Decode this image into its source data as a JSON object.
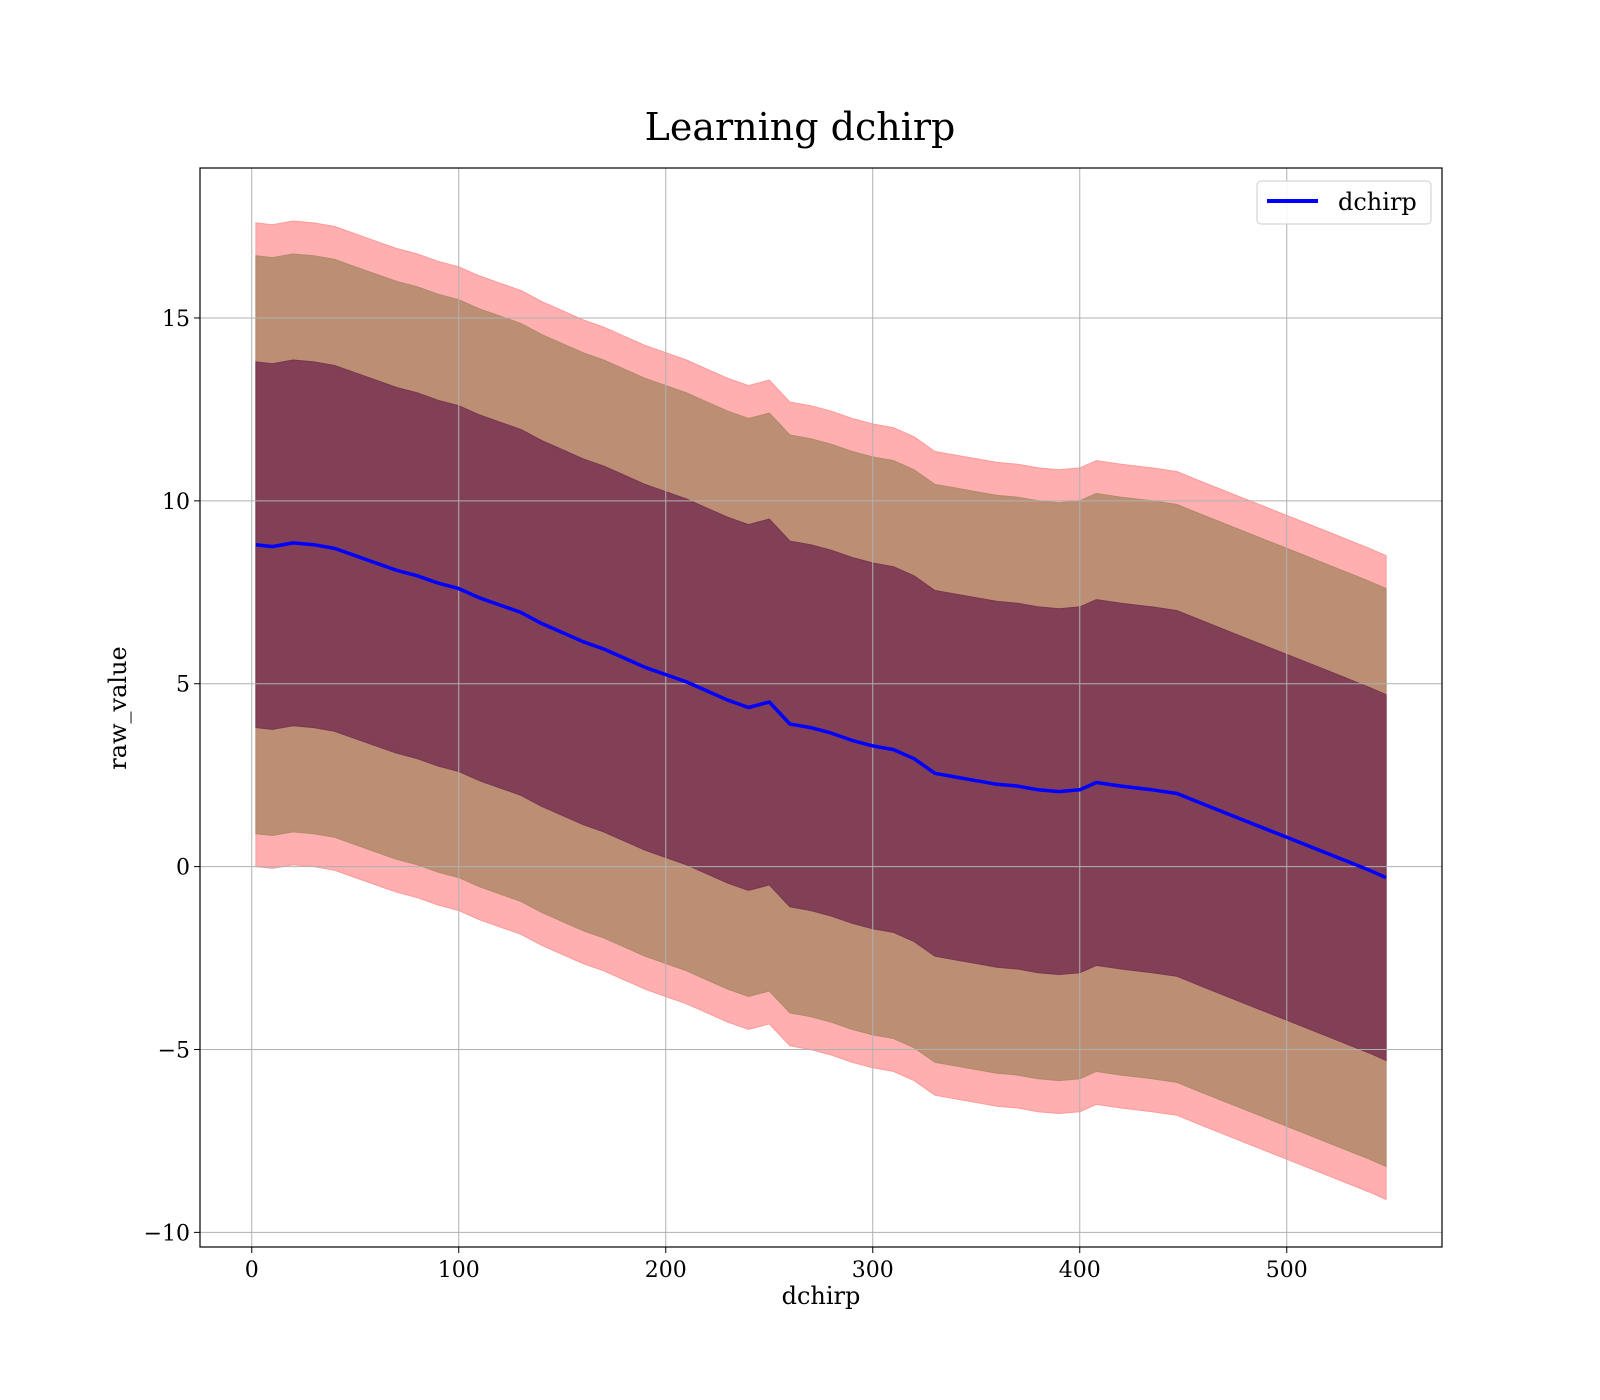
{
  "chart_data": {
    "type": "area",
    "title": "Learning dchirp",
    "xlabel": "dchirp",
    "ylabel": "raw_value",
    "xlim": [
      -25,
      575
    ],
    "ylim": [
      -10.4,
      19.1
    ],
    "xticks": [
      0,
      100,
      200,
      300,
      400,
      500
    ],
    "yticks": [
      -10,
      -5,
      0,
      5,
      10,
      15
    ],
    "xtick_labels": [
      "0",
      "100",
      "200",
      "300",
      "400",
      "500"
    ],
    "ytick_labels": [
      "−10",
      "−5",
      "0",
      "5",
      "10",
      "15"
    ],
    "grid": true,
    "legend_position": "top-right",
    "series": [
      {
        "name": "dchirp",
        "kind": "line",
        "color": "#0000ff",
        "x": [
          2,
          10,
          20,
          30,
          40,
          50,
          60,
          70,
          80,
          90,
          100,
          110,
          120,
          130,
          140,
          150,
          160,
          170,
          180,
          190,
          200,
          210,
          220,
          230,
          240,
          250,
          260,
          270,
          280,
          290,
          300,
          310,
          320,
          330,
          340,
          350,
          360,
          370,
          380,
          390,
          400,
          408,
          420,
          435,
          447,
          460,
          480,
          500,
          520,
          540,
          548
        ],
        "y": [
          8.8,
          8.75,
          8.85,
          8.8,
          8.7,
          8.5,
          8.3,
          8.1,
          7.95,
          7.75,
          7.6,
          7.35,
          7.15,
          6.95,
          6.65,
          6.4,
          6.15,
          5.95,
          5.7,
          5.45,
          5.25,
          5.05,
          4.8,
          4.55,
          4.35,
          4.5,
          3.9,
          3.8,
          3.65,
          3.45,
          3.3,
          3.2,
          2.95,
          2.55,
          2.45,
          2.35,
          2.25,
          2.2,
          2.1,
          2.05,
          2.1,
          2.3,
          2.2,
          2.1,
          2.0,
          1.7,
          1.25,
          0.8,
          0.35,
          -0.1,
          -0.3
        ]
      }
    ],
    "bands": [
      {
        "sigma": 3,
        "color": "#ff9999",
        "x": [
          2,
          10,
          20,
          30,
          40,
          50,
          60,
          70,
          80,
          90,
          100,
          110,
          120,
          130,
          140,
          150,
          160,
          170,
          180,
          190,
          200,
          210,
          220,
          230,
          240,
          250,
          260,
          270,
          280,
          290,
          300,
          310,
          320,
          330,
          340,
          350,
          360,
          370,
          380,
          390,
          400,
          408,
          420,
          435,
          447,
          460,
          480,
          500,
          520,
          540,
          548
        ],
        "upper": [
          17.6,
          17.55,
          17.65,
          17.6,
          17.5,
          17.3,
          17.1,
          16.9,
          16.75,
          16.55,
          16.4,
          16.15,
          15.95,
          15.75,
          15.45,
          15.2,
          14.95,
          14.75,
          14.5,
          14.25,
          14.05,
          13.85,
          13.6,
          13.35,
          13.15,
          13.3,
          12.7,
          12.6,
          12.45,
          12.25,
          12.1,
          12.0,
          11.75,
          11.35,
          11.25,
          11.15,
          11.05,
          11.0,
          10.9,
          10.85,
          10.9,
          11.1,
          11.0,
          10.9,
          10.8,
          10.5,
          10.05,
          9.6,
          9.15,
          8.7,
          8.5
        ],
        "lower": [
          0.0,
          -0.05,
          0.05,
          0.0,
          -0.1,
          -0.3,
          -0.5,
          -0.7,
          -0.85,
          -1.05,
          -1.2,
          -1.45,
          -1.65,
          -1.85,
          -2.15,
          -2.4,
          -2.65,
          -2.85,
          -3.1,
          -3.35,
          -3.55,
          -3.75,
          -4.0,
          -4.25,
          -4.45,
          -4.3,
          -4.9,
          -5.0,
          -5.15,
          -5.35,
          -5.5,
          -5.6,
          -5.85,
          -6.25,
          -6.35,
          -6.45,
          -6.55,
          -6.6,
          -6.7,
          -6.75,
          -6.7,
          -6.5,
          -6.6,
          -6.7,
          -6.8,
          -7.1,
          -7.55,
          -8.0,
          -8.45,
          -8.9,
          -9.1
        ]
      },
      {
        "sigma": 2,
        "color": "#b08a6a",
        "x": [
          2,
          10,
          20,
          30,
          40,
          50,
          60,
          70,
          80,
          90,
          100,
          110,
          120,
          130,
          140,
          150,
          160,
          170,
          180,
          190,
          200,
          210,
          220,
          230,
          240,
          250,
          260,
          270,
          280,
          290,
          300,
          310,
          320,
          330,
          340,
          350,
          360,
          370,
          380,
          390,
          400,
          408,
          420,
          435,
          447,
          460,
          480,
          500,
          520,
          540,
          548
        ],
        "upper": [
          16.7,
          16.65,
          16.75,
          16.7,
          16.6,
          16.4,
          16.2,
          16.0,
          15.85,
          15.65,
          15.5,
          15.25,
          15.05,
          14.85,
          14.55,
          14.3,
          14.05,
          13.85,
          13.6,
          13.35,
          13.15,
          12.95,
          12.7,
          12.45,
          12.25,
          12.4,
          11.8,
          11.7,
          11.55,
          11.35,
          11.2,
          11.1,
          10.85,
          10.45,
          10.35,
          10.25,
          10.15,
          10.1,
          10.0,
          9.95,
          10.0,
          10.2,
          10.1,
          10.0,
          9.9,
          9.6,
          9.15,
          8.7,
          8.25,
          7.8,
          7.6
        ],
        "lower": [
          0.9,
          0.85,
          0.95,
          0.9,
          0.8,
          0.6,
          0.4,
          0.2,
          0.05,
          -0.15,
          -0.3,
          -0.55,
          -0.75,
          -0.95,
          -1.25,
          -1.5,
          -1.75,
          -1.95,
          -2.2,
          -2.45,
          -2.65,
          -2.85,
          -3.1,
          -3.35,
          -3.55,
          -3.4,
          -4.0,
          -4.1,
          -4.25,
          -4.45,
          -4.6,
          -4.7,
          -4.95,
          -5.35,
          -5.45,
          -5.55,
          -5.65,
          -5.7,
          -5.8,
          -5.85,
          -5.8,
          -5.6,
          -5.7,
          -5.8,
          -5.9,
          -6.2,
          -6.65,
          -7.1,
          -7.55,
          -8.0,
          -8.2
        ]
      },
      {
        "sigma": 1,
        "color": "#7a3552",
        "x": [
          2,
          10,
          20,
          30,
          40,
          50,
          60,
          70,
          80,
          90,
          100,
          110,
          120,
          130,
          140,
          150,
          160,
          170,
          180,
          190,
          200,
          210,
          220,
          230,
          240,
          250,
          260,
          270,
          280,
          290,
          300,
          310,
          320,
          330,
          340,
          350,
          360,
          370,
          380,
          390,
          400,
          408,
          420,
          435,
          447,
          460,
          480,
          500,
          520,
          540,
          548
        ],
        "upper": [
          13.8,
          13.75,
          13.85,
          13.8,
          13.7,
          13.5,
          13.3,
          13.1,
          12.95,
          12.75,
          12.6,
          12.35,
          12.15,
          11.95,
          11.65,
          11.4,
          11.15,
          10.95,
          10.7,
          10.45,
          10.25,
          10.05,
          9.8,
          9.55,
          9.35,
          9.5,
          8.9,
          8.8,
          8.65,
          8.45,
          8.3,
          8.2,
          7.95,
          7.55,
          7.45,
          7.35,
          7.25,
          7.2,
          7.1,
          7.05,
          7.1,
          7.3,
          7.2,
          7.1,
          7.0,
          6.7,
          6.25,
          5.8,
          5.35,
          4.9,
          4.7
        ],
        "lower": [
          3.8,
          3.75,
          3.85,
          3.8,
          3.7,
          3.5,
          3.3,
          3.1,
          2.95,
          2.75,
          2.6,
          2.35,
          2.15,
          1.95,
          1.65,
          1.4,
          1.15,
          0.95,
          0.7,
          0.45,
          0.25,
          0.05,
          -0.2,
          -0.45,
          -0.65,
          -0.5,
          -1.1,
          -1.2,
          -1.35,
          -1.55,
          -1.7,
          -1.8,
          -2.05,
          -2.45,
          -2.55,
          -2.65,
          -2.75,
          -2.8,
          -2.9,
          -2.95,
          -2.9,
          -2.7,
          -2.8,
          -2.9,
          -3.0,
          -3.3,
          -3.75,
          -4.2,
          -4.65,
          -5.1,
          -5.3
        ]
      }
    ]
  },
  "legend": {
    "label": "dchirp",
    "color": "#0000ff"
  }
}
